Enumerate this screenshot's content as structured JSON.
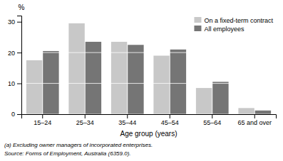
{
  "chart_data": {
    "type": "bar",
    "categories": [
      "15–24",
      "25–34",
      "35–44",
      "45–54",
      "55–64",
      "65 and over"
    ],
    "series": [
      {
        "name": "On a fixed-term contract",
        "color": "#c8c8c8",
        "values": [
          17.5,
          29.5,
          23.5,
          19.0,
          8.5,
          2.0
        ]
      },
      {
        "name": "All employees",
        "color": "#757575",
        "values": [
          20.5,
          23.5,
          22.5,
          21.0,
          10.5,
          1.2
        ]
      }
    ],
    "xlabel": "Age group (years)",
    "ylabel": "%",
    "ylim": [
      0,
      32
    ],
    "yticks": [
      0,
      10,
      20,
      30
    ],
    "grid": true,
    "legend": "upper right",
    "annotations": [
      "(a) Excluding owner managers of incorporated enterprises.",
      "Source: Forms of Employment, Australia (6359.0)."
    ]
  }
}
